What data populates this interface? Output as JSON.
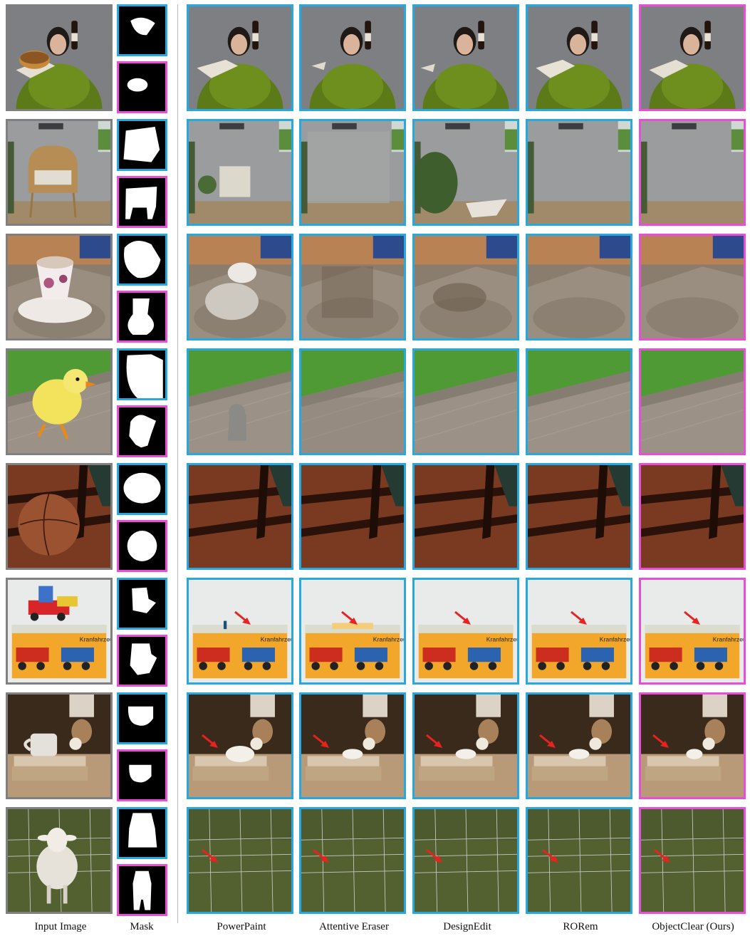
{
  "columns": {
    "input": "Input Image",
    "mask": "Mask",
    "powerpaint": "PowerPaint",
    "attentive_eraser": "Attentive Eraser",
    "designedit": "DesignEdit",
    "rorem": "RORem",
    "objectclear": "ObjectClear (Ours)"
  },
  "rows": [
    {
      "scene": "woman-holding-cake-and-wine",
      "object_removed": "cake"
    },
    {
      "scene": "rattan-chair-room",
      "object_removed": "chair"
    },
    {
      "scene": "teacup-on-saucer",
      "object_removed": "teacup"
    },
    {
      "scene": "chick-on-wood",
      "object_removed": "chick"
    },
    {
      "scene": "basketball-shadow",
      "object_removed": "basketball"
    },
    {
      "scene": "toy-truck-on-box",
      "object_removed": "toy truck"
    },
    {
      "scene": "mug-on-books",
      "object_removed": "mug"
    },
    {
      "scene": "lamb-behind-fence",
      "object_removed": "lamb"
    }
  ],
  "box_text": "Kranfahrzeuge",
  "colors": {
    "input_border": "#808080",
    "baseline_border": "#27a9df",
    "ours_border": "#e94fd6",
    "arrow": "#e8231f"
  }
}
